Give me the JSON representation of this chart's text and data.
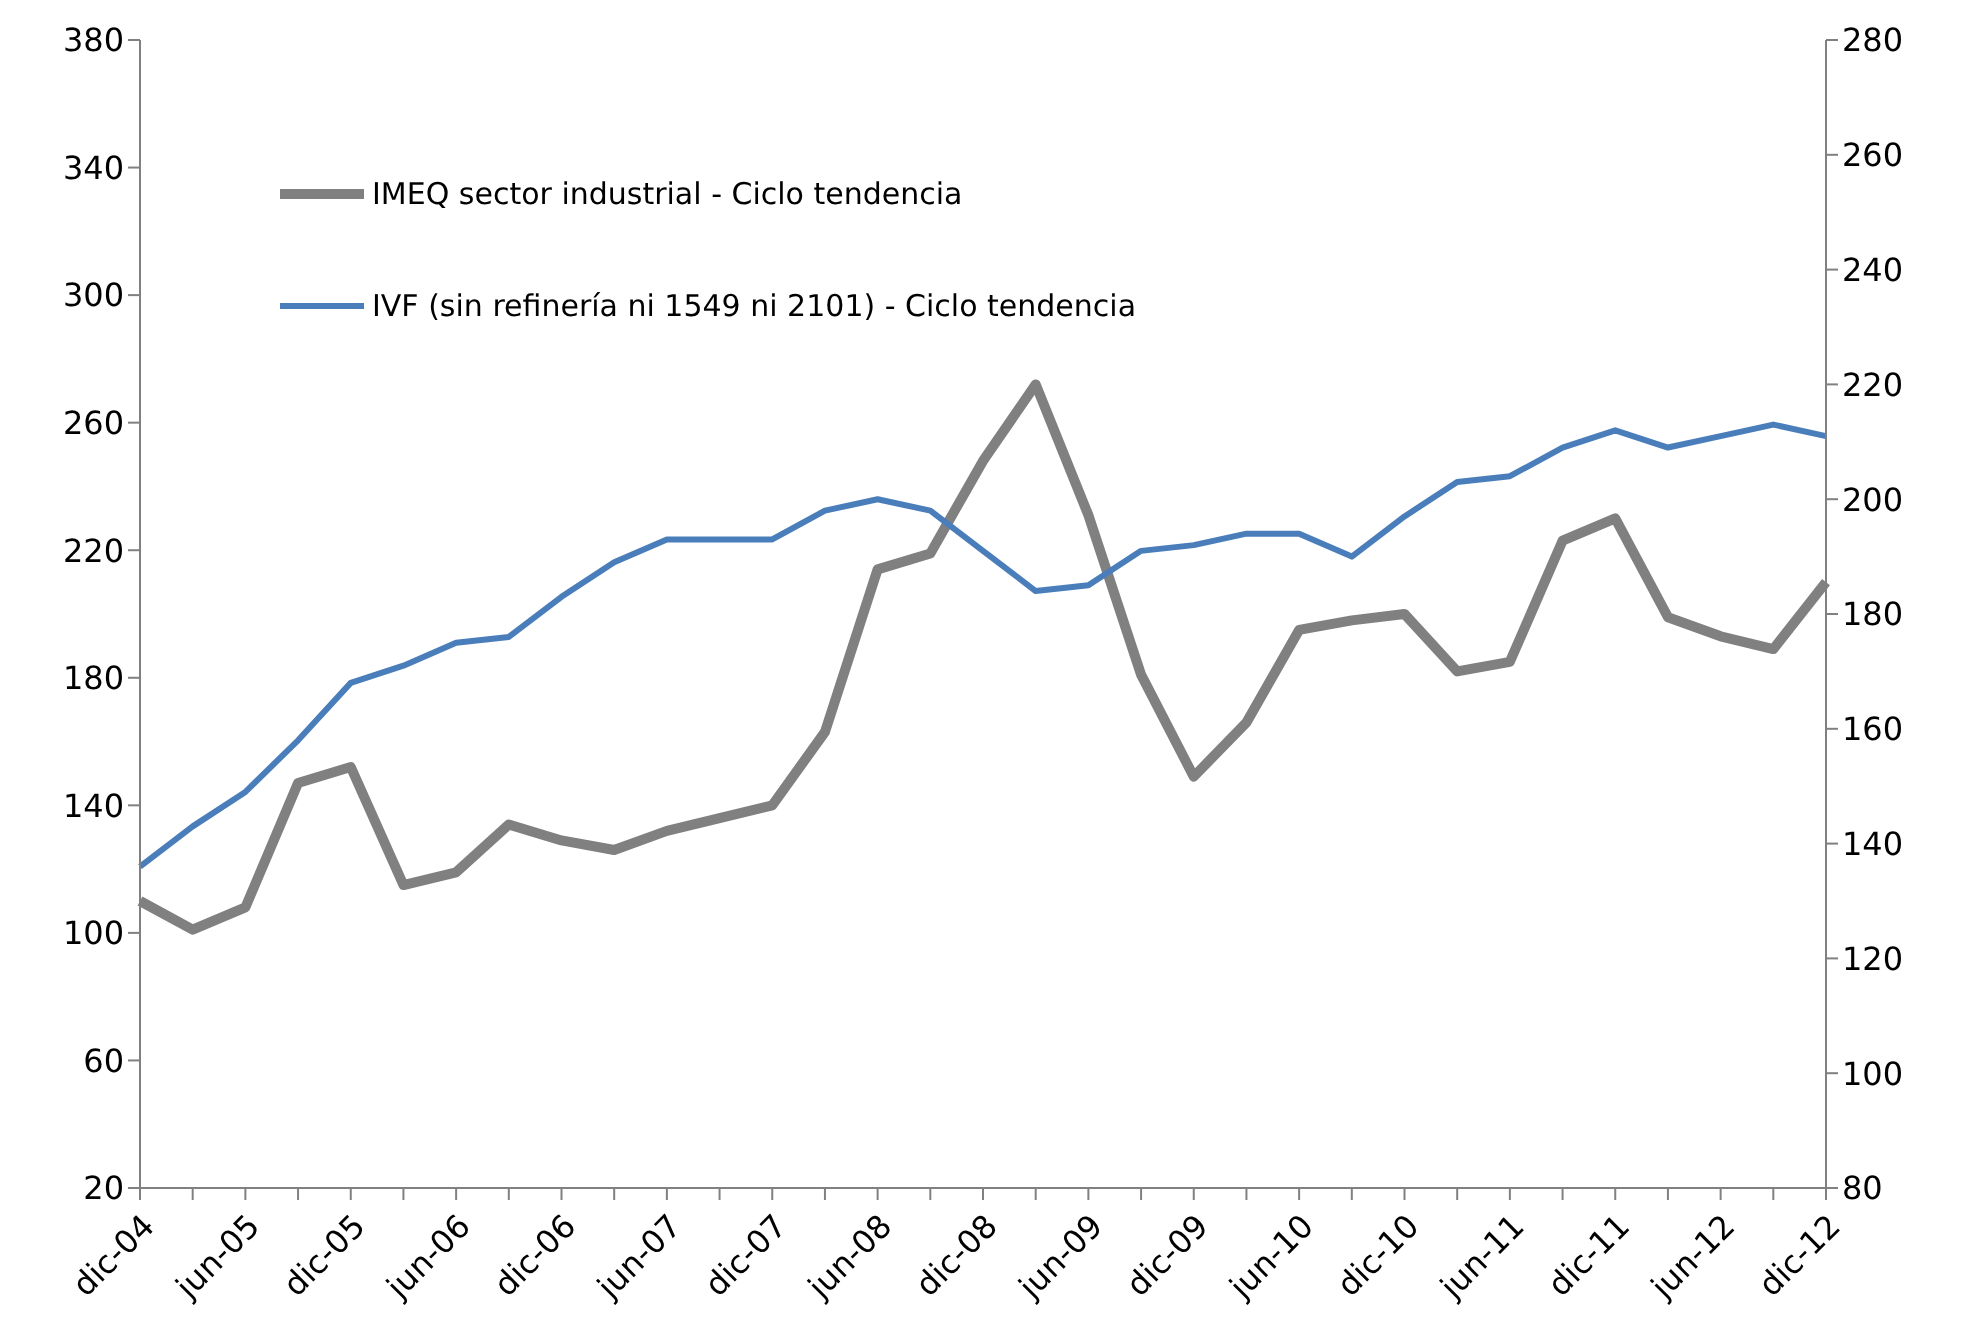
{
  "chart_data": {
    "type": "line",
    "categories": [
      "dic-04",
      null,
      "jun-05",
      null,
      "dic-05",
      null,
      "jun-06",
      null,
      "dic-06",
      null,
      "jun-07",
      null,
      "dic-07",
      null,
      "jun-08",
      null,
      "dic-08",
      null,
      "jun-09",
      null,
      "dic-09",
      null,
      "jun-10",
      null,
      "dic-10",
      null,
      "jun-11",
      null,
      "dic-11",
      null,
      "jun-12",
      null,
      "dic-12"
    ],
    "series": [
      {
        "name": "IMEQ sector industrial - Ciclo tendencia",
        "color": "#808080",
        "axis": "y",
        "values": [
          110,
          101,
          108,
          147,
          152,
          115,
          119,
          134,
          129,
          126,
          132,
          136,
          140,
          163,
          214,
          219,
          248,
          272,
          231,
          181,
          149,
          166,
          195,
          198,
          200,
          182,
          185,
          223,
          230,
          199,
          193,
          189,
          210
        ]
      },
      {
        "name": "IVF (sin refinería ni 1549 ni 2101) - Ciclo tendencia",
        "color": "#4a7ebb",
        "axis": "y2",
        "values": [
          136,
          143,
          149,
          158,
          168,
          171,
          175,
          176,
          183,
          189,
          193,
          193,
          193,
          198,
          200,
          198,
          191,
          184,
          185,
          191,
          192,
          194,
          194,
          190,
          197,
          203,
          204,
          209,
          212,
          209,
          211,
          213,
          211
        ]
      }
    ],
    "ylim": [
      20,
      380
    ],
    "yticks": [
      20,
      60,
      100,
      140,
      180,
      220,
      260,
      300,
      340,
      380
    ],
    "y2lim": [
      80,
      280
    ],
    "y2ticks": [
      80,
      100,
      120,
      140,
      160,
      180,
      200,
      220,
      240,
      260,
      280
    ],
    "grid": false,
    "legend": "top left",
    "marker": "none",
    "line_style": "solid"
  }
}
